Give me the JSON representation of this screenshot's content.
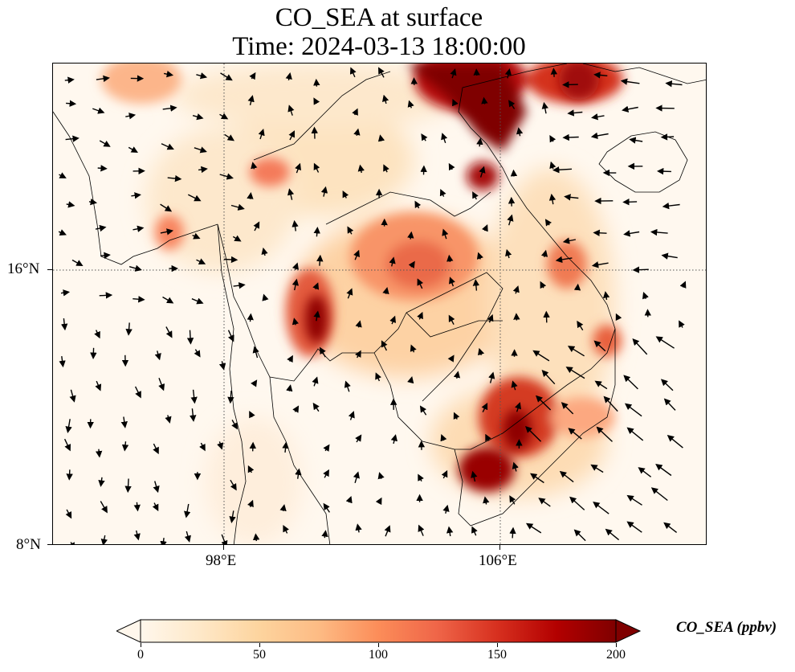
{
  "title": {
    "line1": "CO_SEA at surface",
    "line2": "Time: 2024-03-13 18:00:00"
  },
  "axes": {
    "x_ticks": [
      "98°E",
      "106°E"
    ],
    "y_ticks": [
      "16°N",
      "8°N"
    ],
    "gridlines": true,
    "gridline_style": "dotted"
  },
  "colorbar": {
    "label": "CO_SEA (ppbv)",
    "ticks": [
      "0",
      "50",
      "100",
      "150",
      "200"
    ],
    "range": [
      0,
      200
    ],
    "extend": "both",
    "colormap": "OrRd",
    "colors": [
      "#fff7ec",
      "#fee8c8",
      "#fdd49e",
      "#fdbb84",
      "#fc8d59",
      "#ef6548",
      "#d7301f",
      "#b30000",
      "#7f0000"
    ]
  },
  "map": {
    "variable": "CO_SEA",
    "level": "surface",
    "overlay": "wind vectors",
    "land_outline_color": "#000000",
    "ocean_color": "#fff8ef"
  }
}
